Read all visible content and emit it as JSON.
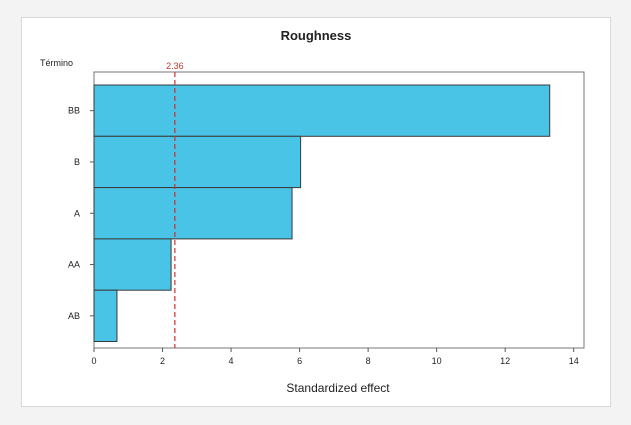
{
  "chart_data": {
    "type": "bar",
    "orientation": "horizontal",
    "title": "Roughness",
    "ylabel": "Término",
    "xlabel": "Standardized effect",
    "categories": [
      "BB",
      "B",
      "A",
      "AA",
      "AB"
    ],
    "values": [
      13.3,
      6.03,
      5.78,
      2.25,
      0.67
    ],
    "xlim": [
      0,
      14.3
    ],
    "xticks": [
      0,
      2,
      4,
      6,
      8,
      10,
      12,
      14
    ],
    "reference_line": {
      "value": 2.36,
      "label": "2.36",
      "color": "#d32f2f"
    },
    "bar_color": "#49c4e6",
    "bar_edge_color": "#3a3a3a",
    "grid": false,
    "legend": "none"
  }
}
